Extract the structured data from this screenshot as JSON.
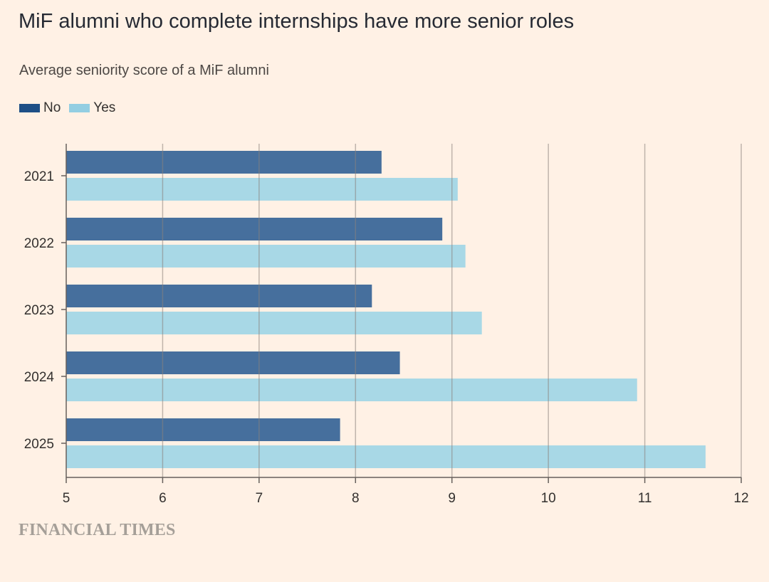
{
  "chart_data": {
    "type": "bar",
    "orientation": "horizontal",
    "title": "MiF alumni who complete internships have more senior roles",
    "subtitle": "Average seniority score of a MiF alumni",
    "categories": [
      "2021",
      "2022",
      "2023",
      "2024",
      "2025"
    ],
    "series": [
      {
        "name": "No",
        "color": "#466f9d",
        "values": [
          8.27,
          8.9,
          8.17,
          8.46,
          7.84
        ]
      },
      {
        "name": "Yes",
        "color": "#a8d8e6",
        "values": [
          9.06,
          9.14,
          9.31,
          10.92,
          11.63
        ]
      }
    ],
    "xlim": [
      5,
      12
    ],
    "xticks": [
      "5",
      "6",
      "7",
      "8",
      "9",
      "10",
      "11",
      "12"
    ],
    "grid": true,
    "legend_position": "top-left"
  },
  "legend_colors": {
    "No": "#1e4f86",
    "Yes": "#93cee2"
  },
  "source": "FINANCIAL TIMES"
}
